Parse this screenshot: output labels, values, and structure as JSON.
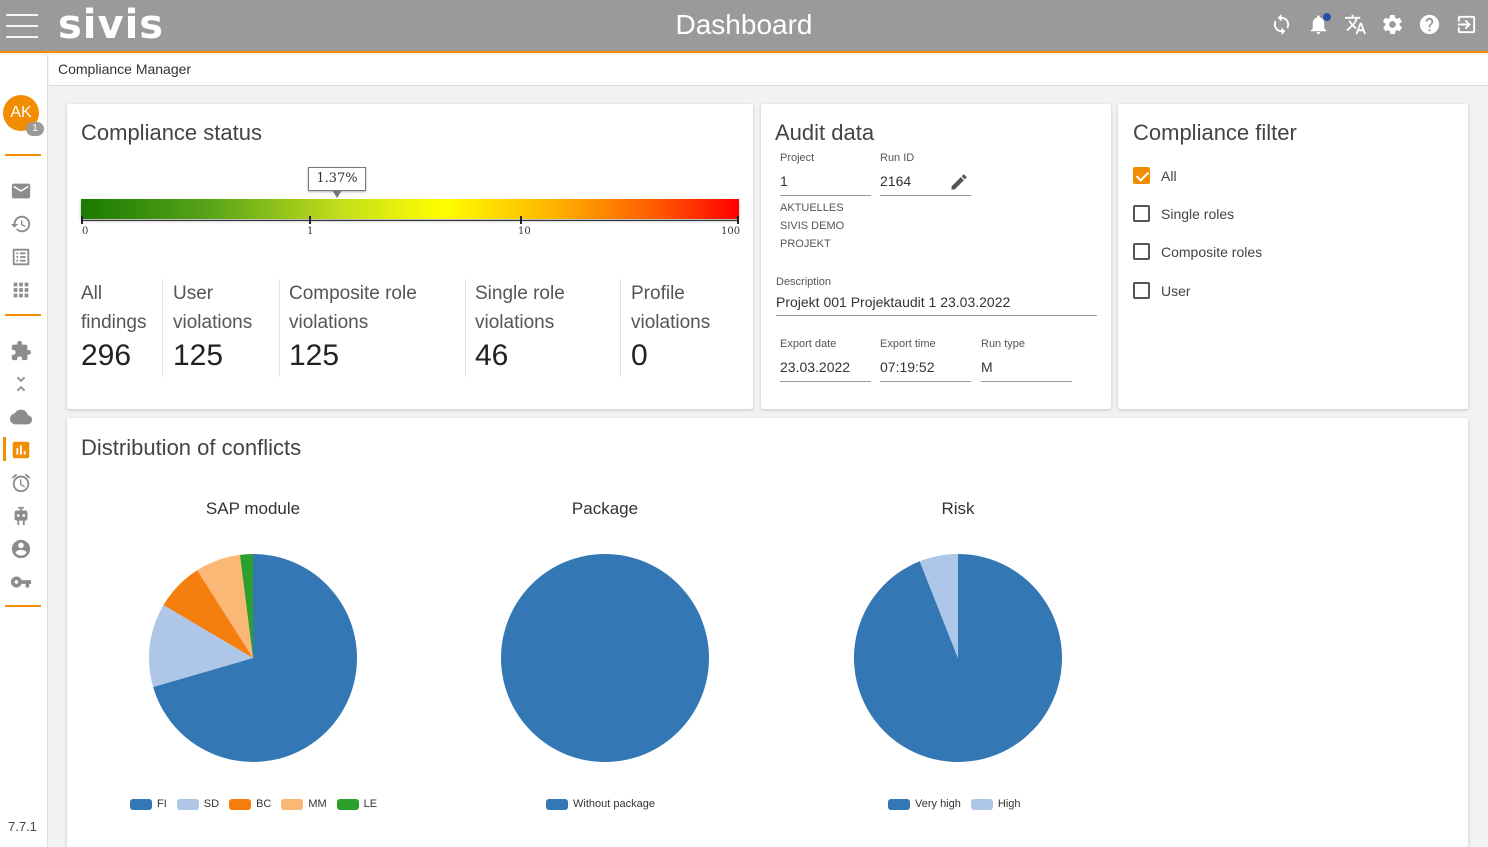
{
  "app": {
    "logo_text": "sivis",
    "page_title": "Dashboard",
    "version": "7.7.1"
  },
  "header_icons": [
    "sync-icon",
    "bell-icon",
    "translate-icon",
    "gear-icon",
    "help-icon",
    "logout-icon"
  ],
  "breadcrumb": "Compliance Manager",
  "user": {
    "initials": "AK",
    "badge": "1"
  },
  "sidebar_icons": [
    "mail-icon",
    "history-icon",
    "list-icon",
    "apps-icon",
    "puzzle-icon",
    "collapse-icon",
    "cloud-icon",
    "chart-icon",
    "alarm-icon",
    "robot-icon",
    "account-icon",
    "key-icon"
  ],
  "compliance_status": {
    "title": "Compliance status",
    "gauge_value_label": "1.37%",
    "gauge_value_percent": 1.37,
    "gauge_scale": "log",
    "gauge_ticks": [
      "0",
      "1",
      "10",
      "100"
    ],
    "stats": [
      {
        "label_line1": "All",
        "label_line2": "findings",
        "value": "296"
      },
      {
        "label_line1": "User",
        "label_line2": "violations",
        "value": "125"
      },
      {
        "label_line1": "Composite role",
        "label_line2": "violations",
        "value": "125"
      },
      {
        "label_line1": "Single role",
        "label_line2": "violations",
        "value": "46"
      },
      {
        "label_line1": "Profile",
        "label_line2": "violations",
        "value": "0"
      }
    ]
  },
  "audit_data": {
    "title": "Audit data",
    "project_label": "Project",
    "project_value": "1",
    "project_name": [
      "AKTUELLES",
      "SIVIS DEMO",
      "PROJEKT"
    ],
    "run_id_label": "Run ID",
    "run_id_value": "2164",
    "description_label": "Description",
    "description_value": "Projekt 001 Projektaudit 1 23.03.2022",
    "export_date_label": "Export date",
    "export_date_value": "23.03.2022",
    "export_time_label": "Export time",
    "export_time_value": "07:19:52",
    "run_type_label": "Run type",
    "run_type_value": "M"
  },
  "compliance_filter": {
    "title": "Compliance filter",
    "options": [
      {
        "label": "All",
        "checked": true
      },
      {
        "label": "Single roles",
        "checked": false
      },
      {
        "label": "Composite roles",
        "checked": false
      },
      {
        "label": "User",
        "checked": false
      }
    ]
  },
  "distribution": {
    "title": "Distribution of conflicts"
  },
  "colors": {
    "accent": "#f28c00",
    "header": "#9a9a9a",
    "blue": "#3377b5",
    "light_blue": "#aec7e8",
    "orange": "#f57f0e",
    "light_orange": "#fbb776",
    "green": "#2ca02c"
  },
  "chart_data": [
    {
      "type": "pie",
      "title": "SAP module",
      "categories": [
        "FI",
        "SD",
        "BC",
        "MM",
        "LE"
      ],
      "values": [
        70.5,
        13,
        7.5,
        7,
        2
      ],
      "colors": [
        "#3377b5",
        "#aec7e8",
        "#f57f0e",
        "#fbb776",
        "#2ca02c"
      ],
      "legend": "bottom"
    },
    {
      "type": "pie",
      "title": "Package",
      "categories": [
        "Without package"
      ],
      "values": [
        100
      ],
      "colors": [
        "#3377b5"
      ],
      "legend": "bottom"
    },
    {
      "type": "pie",
      "title": "Risk",
      "categories": [
        "Very high",
        "High"
      ],
      "values": [
        94,
        6
      ],
      "colors": [
        "#3377b5",
        "#aec7e8"
      ],
      "legend": "bottom"
    }
  ]
}
